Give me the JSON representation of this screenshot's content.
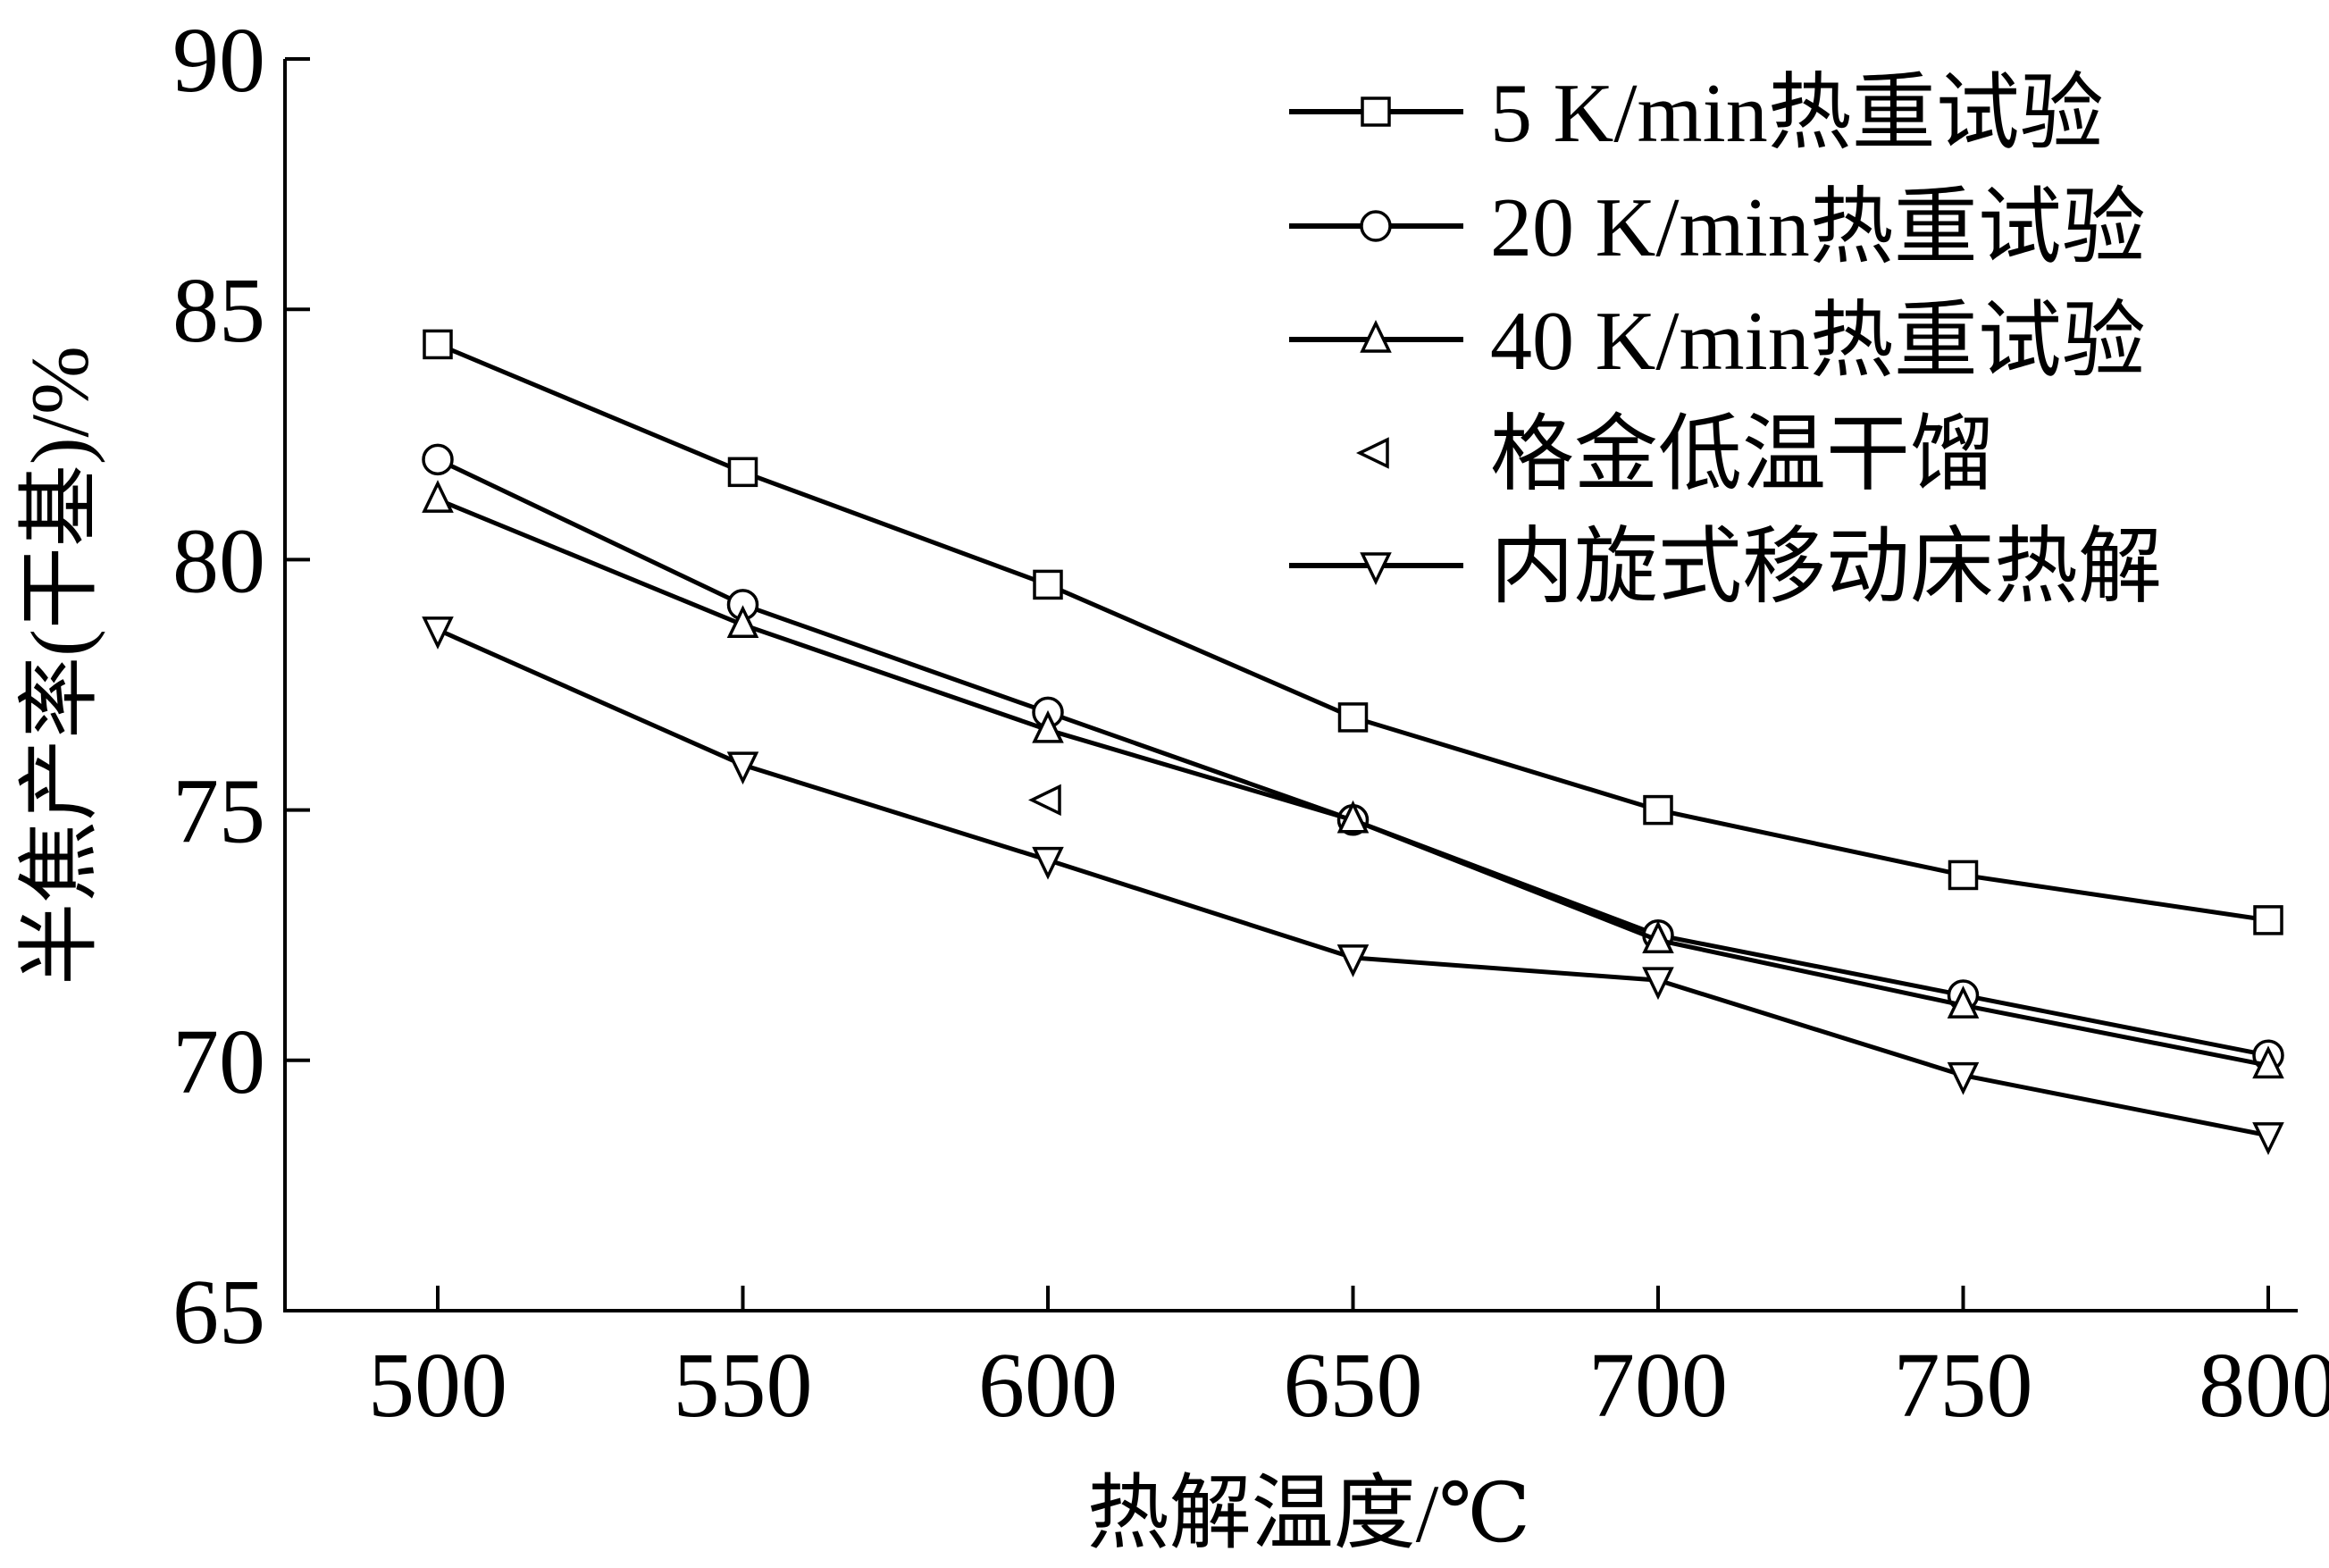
{
  "chart_data": {
    "type": "line",
    "title": "",
    "xlabel": "热解温度/℃",
    "ylabel": "半焦产率(干基)/%",
    "xlim": [
      475,
      810
    ],
    "ylim": [
      65,
      90
    ],
    "xticks": [
      500,
      550,
      600,
      650,
      700,
      750,
      800
    ],
    "yticks": [
      65,
      70,
      75,
      80,
      85,
      90
    ],
    "grid": false,
    "legend_position": "top-right",
    "series": [
      {
        "name": "5 K/min热重试验",
        "marker": "square",
        "line": true,
        "x": [
          500,
          550,
          600,
          650,
          700,
          750,
          800
        ],
        "y": [
          84.3,
          81.75,
          79.5,
          76.85,
          75.0,
          73.7,
          72.8
        ]
      },
      {
        "name": "20 K/min热重试验",
        "marker": "circle",
        "line": true,
        "x": [
          500,
          550,
          600,
          650,
          700,
          750,
          800
        ],
        "y": [
          82.0,
          79.1,
          76.95,
          74.8,
          72.5,
          71.3,
          70.1
        ]
      },
      {
        "name": "40 K/min热重试验",
        "marker": "triangle-up",
        "line": true,
        "x": [
          500,
          550,
          600,
          650,
          700,
          750,
          800
        ],
        "y": [
          81.2,
          78.7,
          76.6,
          74.8,
          72.4,
          71.1,
          69.9
        ]
      },
      {
        "name": "格金低温干馏",
        "marker": "triangle-left",
        "line": false,
        "x": [
          600
        ],
        "y": [
          75.2
        ]
      },
      {
        "name": "内旋式移动床热解",
        "marker": "triangle-down",
        "line": true,
        "x": [
          500,
          550,
          600,
          650,
          700,
          750,
          800
        ],
        "y": [
          78.6,
          75.9,
          74.0,
          72.05,
          71.6,
          69.7,
          68.5
        ]
      }
    ]
  }
}
